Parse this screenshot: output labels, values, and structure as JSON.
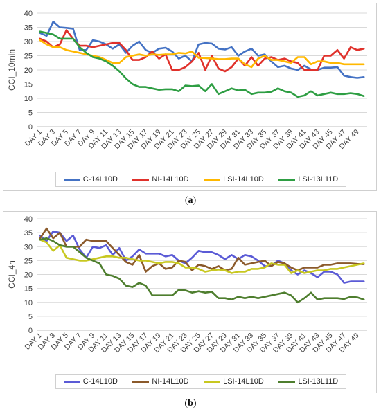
{
  "captions": {
    "a_open": "(",
    "a_letter": "a",
    "a_close": ")",
    "b_open": "(",
    "b_letter": "b",
    "b_close": ")"
  },
  "chart_data": [
    {
      "type": "line",
      "panel": "a",
      "ylabel": "CCI_10min",
      "xlabel": "",
      "ylim": [
        0,
        40
      ],
      "yticks": [
        0,
        5,
        10,
        15,
        20,
        25,
        30,
        35,
        40
      ],
      "x": [
        "DAY 1",
        "DAY 2",
        "DAY 3",
        "DAY 4",
        "DAY 5",
        "DAY 6",
        "DAY 7",
        "DAY 8",
        "DAY 9",
        "DAY 10",
        "DAY 11",
        "DAY 12",
        "DAY 13",
        "DAY 14",
        "DAY 15",
        "DAY 16",
        "DAY 17",
        "DAY 18",
        "DAY 19",
        "DAY 20",
        "DAY 21",
        "DAY 22",
        "DAY 23",
        "DAY 24",
        "DAY 25",
        "DAY 26",
        "DAY 27",
        "DAY 28",
        "DAY 29",
        "DAY 30",
        "DAY 31",
        "DAY 32",
        "DAY 33",
        "DAY 34",
        "DAY 35",
        "DAY 36",
        "DAY 37",
        "DAY 38",
        "DAY 39",
        "DAY 40",
        "DAY 41",
        "DAY 42",
        "DAY 43",
        "DAY 44",
        "DAY 45",
        "DAY 46",
        "DAY 47",
        "DAY 48",
        "DAY 49",
        "DAY 50"
      ],
      "xtick_labels": [
        "DAY 1",
        "DAY 3",
        "DAY 5",
        "DAY 7",
        "DAY 9",
        "DAY 11",
        "DAY 13",
        "DAY 15",
        "DAY 17",
        "DAY 19",
        "DAY 21",
        "DAY 23",
        "DAY 25",
        "DAY 27",
        "DAY 29",
        "DAY 31",
        "DAY 33",
        "DAY 35",
        "DAY 37",
        "DAY 39",
        "DAY 41",
        "DAY 43",
        "DAY 45",
        "DAY 47",
        "DAY 49"
      ],
      "grid": true,
      "legend_position": "bottom",
      "series": [
        {
          "name": "C-14L10D",
          "color": "#4472C4",
          "values": [
            33,
            32,
            37,
            35,
            34.8,
            34.5,
            27,
            27,
            30.5,
            30,
            29,
            27.5,
            29,
            26,
            28.5,
            30,
            27,
            26,
            27.5,
            27.8,
            26.5,
            24,
            25,
            23,
            29,
            29.5,
            29.3,
            27.5,
            27.2,
            28,
            25,
            26.5,
            27.5,
            25,
            25.5,
            23,
            21,
            21.5,
            20.5,
            20,
            21.5,
            20.2,
            20,
            20.8,
            20.8,
            21,
            18,
            17.5,
            17.2,
            17.5
          ]
        },
        {
          "name": "NI-14L10D",
          "color": "#E0312B",
          "values": [
            31,
            30,
            28,
            29,
            34,
            31,
            28.5,
            28.5,
            28,
            28.5,
            29,
            29.5,
            29.5,
            27,
            23.5,
            23.5,
            24.5,
            26.5,
            24,
            25.5,
            20,
            20,
            21,
            23,
            26,
            20,
            25,
            20.5,
            19.5,
            21,
            24,
            21.5,
            24.5,
            21.5,
            24,
            24.5,
            23.5,
            24,
            23,
            22.5,
            20,
            20,
            20,
            25,
            25,
            27,
            24,
            28,
            27,
            27.5
          ]
        },
        {
          "name": "LSI-14L10D",
          "color": "#FFB800",
          "values": [
            30.5,
            29,
            28,
            28,
            27,
            26.5,
            26,
            25.5,
            25,
            24.5,
            23.5,
            22.5,
            22.5,
            24.5,
            25,
            25.5,
            25,
            25.5,
            25.3,
            25.5,
            25.5,
            26,
            25.8,
            26.5,
            24.3,
            24.2,
            24,
            23.8,
            23.8,
            24,
            24,
            22,
            21,
            24,
            25,
            23.5,
            23.5,
            23,
            22.5,
            24.5,
            24.5,
            22,
            23,
            23,
            22.5,
            22.5,
            22,
            22,
            22,
            22
          ]
        },
        {
          "name": "LSI-13L11D",
          "color": "#2E9E43",
          "values": [
            33.5,
            33,
            32.5,
            31,
            31,
            31,
            28,
            26,
            24.5,
            24,
            23,
            21.5,
            19.5,
            17,
            15,
            14,
            14,
            13.5,
            13,
            13.2,
            13.2,
            12.5,
            14.5,
            14.3,
            14.5,
            12.5,
            15,
            11.5,
            12.5,
            13.5,
            12.8,
            13,
            11.5,
            12,
            12,
            12.3,
            13.5,
            12.5,
            12,
            10.5,
            11,
            12.5,
            11,
            11.5,
            12,
            11.5,
            11.5,
            11.8,
            11.5,
            10.8
          ]
        }
      ]
    },
    {
      "type": "line",
      "panel": "b",
      "ylabel": "CCI_4h",
      "xlabel": "",
      "ylim": [
        0,
        40
      ],
      "yticks": [
        0,
        5,
        10,
        15,
        20,
        25,
        30,
        35,
        40
      ],
      "x": [
        "DAY 1",
        "DAY 2",
        "DAY 3",
        "DAY 4",
        "DAY 5",
        "DAY 6",
        "DAY 7",
        "DAY 8",
        "DAY 9",
        "DAY 10",
        "DAY 11",
        "DAY 12",
        "DAY 13",
        "DAY 14",
        "DAY 15",
        "DAY 16",
        "DAY 17",
        "DAY 18",
        "DAY 19",
        "DAY 20",
        "DAY 21",
        "DAY 22",
        "DAY 23",
        "DAY 24",
        "DAY 25",
        "DAY 26",
        "DAY 27",
        "DAY 28",
        "DAY 29",
        "DAY 30",
        "DAY 31",
        "DAY 32",
        "DAY 33",
        "DAY 34",
        "DAY 35",
        "DAY 36",
        "DAY 37",
        "DAY 38",
        "DAY 39",
        "DAY 40",
        "DAY 41",
        "DAY 42",
        "DAY 43",
        "DAY 44",
        "DAY 45",
        "DAY 46",
        "DAY 47",
        "DAY 48",
        "DAY 49",
        "DAY 50"
      ],
      "xtick_labels": [
        "DAY 1",
        "DAY 3",
        "DAY 5",
        "DAY 7",
        "DAY 9",
        "DAY 11",
        "DAY 13",
        "DAY 15",
        "DAY 17",
        "DAY 19",
        "DAY 21",
        "DAY 23",
        "DAY 25",
        "DAY 27",
        "DAY 29",
        "DAY 31",
        "DAY 33",
        "DAY 35",
        "DAY 37",
        "DAY 39",
        "DAY 41",
        "DAY 43",
        "DAY 45",
        "DAY 47",
        "DAY 49"
      ],
      "grid": true,
      "legend_position": "bottom",
      "series": [
        {
          "name": "C-14L10D",
          "color": "#5B5BD6",
          "values": [
            34,
            32,
            35.5,
            35,
            32,
            34,
            29,
            26,
            30,
            29.5,
            30.5,
            27,
            29.5,
            25,
            26.5,
            29,
            27.5,
            27.5,
            27.5,
            26.5,
            27,
            25,
            24,
            26,
            28.5,
            28,
            28,
            27,
            25.5,
            27,
            25.5,
            27,
            26.5,
            25,
            23,
            23,
            25,
            24,
            21.5,
            20,
            21.5,
            20.5,
            19,
            21,
            21,
            20,
            17,
            17.5,
            17.5,
            17.5
          ]
        },
        {
          "name": "NI-14L10D",
          "color": "#8B5A2B",
          "values": [
            33,
            36.5,
            33,
            35,
            30,
            30,
            30,
            32.5,
            32,
            32,
            32,
            29.5,
            27,
            24.5,
            23.5,
            27,
            21,
            23,
            24,
            22,
            22.5,
            25,
            24.5,
            21.5,
            23.5,
            23,
            22,
            23,
            21.5,
            22,
            26,
            23.5,
            24,
            24.5,
            25,
            23,
            24.5,
            24,
            22.5,
            21.5,
            22.5,
            22.5,
            22.5,
            23.5,
            23.5,
            24,
            24,
            24,
            23.8,
            23.7
          ]
        },
        {
          "name": "LSI-14L10D",
          "color": "#C8C820",
          "values": [
            32.5,
            31.5,
            28.5,
            30.5,
            26,
            25.5,
            25,
            25,
            25.5,
            26,
            26.5,
            26.5,
            26,
            26,
            25.5,
            25,
            25,
            24.5,
            24,
            24.5,
            24.5,
            24,
            22.5,
            22.5,
            22,
            21,
            21.5,
            21.8,
            21.5,
            20.5,
            21,
            21,
            22,
            22,
            22.5,
            24,
            23.5,
            23.5,
            20.5,
            21.5,
            20.5,
            21,
            21.5,
            21.5,
            22,
            22,
            22.5,
            23,
            23.5,
            24
          ]
        },
        {
          "name": "LSI-13L11D",
          "color": "#4E7E2E",
          "values": [
            32.5,
            33,
            32,
            30.5,
            30,
            30,
            28,
            26,
            25,
            24,
            20,
            19.5,
            18.5,
            16,
            15.5,
            17,
            16,
            12.5,
            12.5,
            12.5,
            12.5,
            14.5,
            14.3,
            13.5,
            14,
            13.5,
            13.8,
            11.5,
            11.5,
            11,
            12,
            11.5,
            12,
            11.5,
            12,
            12.5,
            13,
            13.5,
            12.5,
            10,
            11.5,
            13.5,
            11,
            11.5,
            11.5,
            11.5,
            11.2,
            12,
            11.8,
            11
          ]
        }
      ]
    }
  ]
}
